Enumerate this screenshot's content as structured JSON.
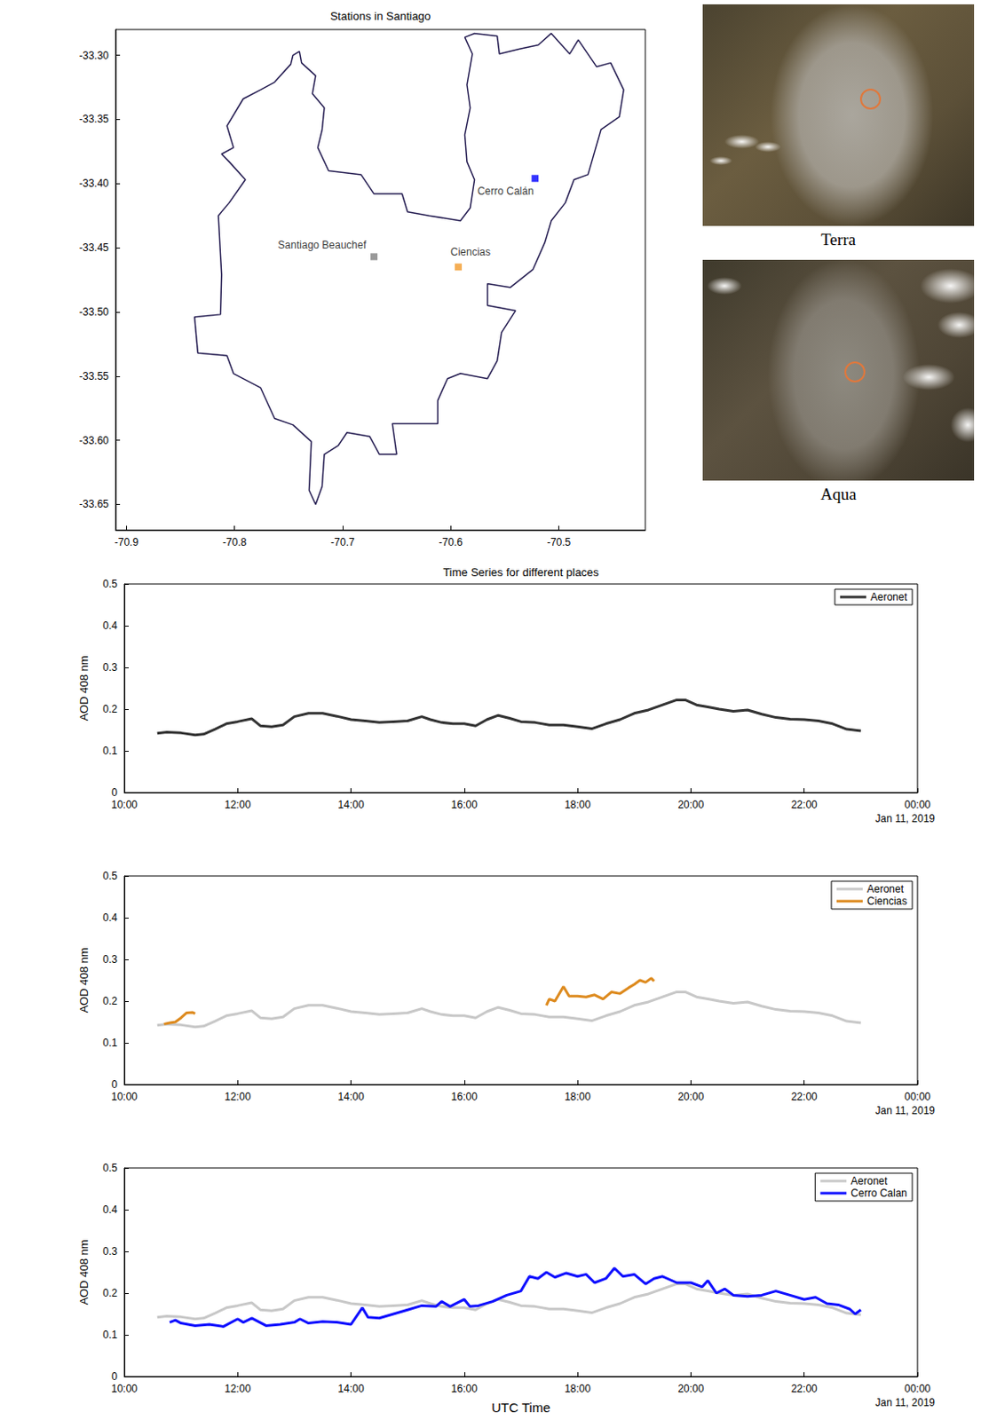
{
  "chart_data": [
    {
      "type": "map",
      "title": "Stations in Santiago",
      "xlim": [
        -70.91,
        -70.42
      ],
      "xticks": [
        -70.9,
        -70.8,
        -70.7,
        -70.6,
        -70.5
      ],
      "ylim": [
        -33.67,
        -33.28
      ],
      "yticks": [
        {
          "value": -33.3,
          "label": "-33.30"
        },
        -33.35,
        {
          "value": -33.4,
          "label": "-33.40"
        },
        -33.45,
        {
          "value": -33.5,
          "label": "-33.50"
        },
        -33.55,
        {
          "value": -33.6,
          "label": "-33.60"
        },
        -33.65
      ],
      "grid": false,
      "outline": {
        "color": "#231b50",
        "lon": [
          -70.746,
          -70.74,
          -70.738,
          -70.725,
          -70.728,
          -70.717,
          -70.719,
          -70.723,
          -70.713,
          -70.683,
          -70.671,
          -70.645,
          -70.64,
          -70.62,
          -70.591,
          -70.582,
          -70.578,
          -70.585,
          -70.587,
          -70.582,
          -70.585,
          -70.58,
          -70.587,
          -70.578,
          -70.557,
          -70.555,
          -70.536,
          -70.519,
          -70.507,
          -70.49,
          -70.482,
          -70.465,
          -70.452,
          -70.44,
          -70.444,
          -70.461,
          -70.473,
          -70.486,
          -70.494,
          -70.507,
          -70.513,
          -70.524,
          -70.545,
          -70.566,
          -70.566,
          -70.54,
          -70.553,
          -70.557,
          -70.566,
          -70.591,
          -70.603,
          -70.612,
          -70.612,
          -70.654,
          -70.65,
          -70.666,
          -70.675,
          -70.696,
          -70.704,
          -70.717,
          -70.719,
          -70.725,
          -70.731,
          -70.729,
          -70.746,
          -70.763,
          -70.776,
          -70.801,
          -70.807,
          -70.834,
          -70.837,
          -70.813,
          -70.812,
          -70.815,
          -70.805,
          -70.79,
          -70.805,
          -70.812,
          -70.801,
          -70.807,
          -70.792,
          -70.776,
          -70.763,
          -70.748
        ],
        "lat": [
          -33.3,
          -33.297,
          -33.306,
          -33.316,
          -33.33,
          -33.341,
          -33.358,
          -33.372,
          -33.39,
          -33.393,
          -33.408,
          -33.408,
          -33.422,
          -33.425,
          -33.429,
          -33.419,
          -33.397,
          -33.383,
          -33.362,
          -33.341,
          -33.323,
          -33.299,
          -33.286,
          -33.283,
          -33.285,
          -33.299,
          -33.295,
          -33.292,
          -33.283,
          -33.299,
          -33.288,
          -33.309,
          -33.306,
          -33.327,
          -33.348,
          -33.358,
          -33.393,
          -33.397,
          -33.415,
          -33.429,
          -33.446,
          -33.467,
          -33.481,
          -33.478,
          -33.495,
          -33.499,
          -33.516,
          -33.538,
          -33.552,
          -33.548,
          -33.552,
          -33.569,
          -33.587,
          -33.587,
          -33.611,
          -33.611,
          -33.597,
          -33.594,
          -33.604,
          -33.611,
          -33.636,
          -33.65,
          -33.639,
          -33.601,
          -33.588,
          -33.583,
          -33.559,
          -33.548,
          -33.534,
          -33.532,
          -33.504,
          -33.502,
          -33.471,
          -33.425,
          -33.415,
          -33.397,
          -33.383,
          -33.377,
          -33.372,
          -33.355,
          -33.334,
          -33.327,
          -33.321,
          -33.307
        ]
      },
      "stations": [
        {
          "name": "Santiago Beauchef",
          "lon": -70.671,
          "lat": -33.457,
          "color": "#808080"
        },
        {
          "name": "Ciencias",
          "lon": -70.593,
          "lat": -33.465,
          "color": "#f39a2a"
        },
        {
          "name": "Cerro Calán",
          "lon": -70.522,
          "lat": -33.396,
          "color": "#0000ff"
        }
      ],
      "marker": "square"
    },
    {
      "type": "line",
      "title": "Time Series for different places",
      "ylabel": "AOD 408 nm",
      "xlim": [
        10,
        24
      ],
      "xticks": [
        {
          "value": 10,
          "label": "10:00"
        },
        {
          "value": 12,
          "label": "12:00"
        },
        {
          "value": 14,
          "label": "14:00"
        },
        {
          "value": 16,
          "label": "16:00"
        },
        {
          "value": 18,
          "label": "18:00"
        },
        {
          "value": 20,
          "label": "20:00"
        },
        {
          "value": 22,
          "label": "22:00"
        },
        {
          "value": 24,
          "label": "00:00"
        }
      ],
      "ylim": [
        0,
        0.5
      ],
      "yticks": [
        0,
        0.1,
        0.2,
        0.3,
        0.4,
        0.5
      ],
      "grid": false,
      "legend": "upper right",
      "annotations": [
        {
          "text": "Jan 11, 2019",
          "x": 24
        }
      ],
      "series": [
        {
          "name": "Aeronet",
          "color": "#333333",
          "x": [
            10.58,
            10.75,
            11.0,
            11.25,
            11.4,
            11.6,
            11.8,
            12.0,
            12.25,
            12.4,
            12.6,
            12.8,
            13.0,
            13.25,
            13.5,
            13.75,
            14.0,
            14.25,
            14.5,
            14.75,
            15.0,
            15.25,
            15.4,
            15.6,
            15.8,
            16.0,
            16.2,
            16.4,
            16.6,
            16.8,
            17.0,
            17.25,
            17.5,
            17.75,
            18.0,
            18.25,
            18.5,
            18.75,
            19.0,
            19.25,
            19.5,
            19.75,
            19.9,
            20.1,
            20.3,
            20.5,
            20.75,
            21.0,
            21.25,
            21.5,
            21.75,
            22.0,
            22.25,
            22.5,
            22.75,
            23.0
          ],
          "values": [
            0.142,
            0.145,
            0.143,
            0.138,
            0.14,
            0.152,
            0.165,
            0.17,
            0.177,
            0.16,
            0.158,
            0.162,
            0.182,
            0.19,
            0.19,
            0.183,
            0.175,
            0.172,
            0.168,
            0.17,
            0.172,
            0.182,
            0.175,
            0.168,
            0.165,
            0.165,
            0.16,
            0.175,
            0.185,
            0.178,
            0.17,
            0.168,
            0.162,
            0.162,
            0.158,
            0.153,
            0.165,
            0.175,
            0.19,
            0.198,
            0.21,
            0.222,
            0.222,
            0.21,
            0.205,
            0.2,
            0.195,
            0.198,
            0.188,
            0.18,
            0.176,
            0.175,
            0.172,
            0.165,
            0.152,
            0.148
          ]
        }
      ]
    },
    {
      "type": "line",
      "ylabel": "AOD 408 nm",
      "xlim": [
        10,
        24
      ],
      "xticks": [
        {
          "value": 10,
          "label": "10:00"
        },
        {
          "value": 12,
          "label": "12:00"
        },
        {
          "value": 14,
          "label": "14:00"
        },
        {
          "value": 16,
          "label": "16:00"
        },
        {
          "value": 18,
          "label": "18:00"
        },
        {
          "value": 20,
          "label": "20:00"
        },
        {
          "value": 22,
          "label": "22:00"
        },
        {
          "value": 24,
          "label": "00:00"
        }
      ],
      "ylim": [
        0,
        0.5
      ],
      "yticks": [
        0,
        0.1,
        0.2,
        0.3,
        0.4,
        0.5
      ],
      "grid": false,
      "legend": "upper right",
      "annotations": [
        {
          "text": "Jan 11, 2019",
          "x": 24
        }
      ],
      "series": [
        {
          "name": "Aeronet",
          "color": "#c8c8c8",
          "x": [
            10.58,
            10.75,
            11.0,
            11.25,
            11.4,
            11.6,
            11.8,
            12.0,
            12.25,
            12.4,
            12.6,
            12.8,
            13.0,
            13.25,
            13.5,
            13.75,
            14.0,
            14.25,
            14.5,
            14.75,
            15.0,
            15.25,
            15.4,
            15.6,
            15.8,
            16.0,
            16.2,
            16.4,
            16.6,
            16.8,
            17.0,
            17.25,
            17.5,
            17.75,
            18.0,
            18.25,
            18.5,
            18.75,
            19.0,
            19.25,
            19.5,
            19.75,
            19.9,
            20.1,
            20.3,
            20.5,
            20.75,
            21.0,
            21.25,
            21.5,
            21.75,
            22.0,
            22.25,
            22.5,
            22.75,
            23.0
          ],
          "values": [
            0.142,
            0.145,
            0.143,
            0.138,
            0.14,
            0.152,
            0.165,
            0.17,
            0.177,
            0.16,
            0.158,
            0.162,
            0.182,
            0.19,
            0.19,
            0.183,
            0.175,
            0.172,
            0.168,
            0.17,
            0.172,
            0.182,
            0.175,
            0.168,
            0.165,
            0.165,
            0.16,
            0.175,
            0.185,
            0.178,
            0.17,
            0.168,
            0.162,
            0.162,
            0.158,
            0.153,
            0.165,
            0.175,
            0.19,
            0.198,
            0.21,
            0.222,
            0.222,
            0.21,
            0.205,
            0.2,
            0.195,
            0.198,
            0.188,
            0.18,
            0.176,
            0.175,
            0.172,
            0.165,
            0.152,
            0.148
          ]
        },
        {
          "name": "Ciencias",
          "color": "#dd8a1e",
          "x": [
            10.7,
            10.8,
            10.9,
            11.0,
            11.1,
            11.2,
            11.25,
            14.0,
            17.45,
            17.5,
            17.6,
            17.75,
            17.85,
            18.0,
            18.15,
            18.3,
            18.45,
            18.6,
            18.75,
            18.9,
            19.0,
            19.1,
            19.2,
            19.3,
            19.35
          ],
          "values": [
            0.145,
            0.148,
            0.15,
            0.16,
            0.172,
            0.173,
            0.17,
            null,
            0.19,
            0.205,
            0.2,
            0.235,
            0.212,
            0.212,
            0.21,
            0.215,
            0.205,
            0.222,
            0.218,
            0.232,
            0.24,
            0.25,
            0.245,
            0.255,
            0.248
          ]
        }
      ]
    },
    {
      "type": "line",
      "ylabel": "AOD 408 nm",
      "xlabel": "UTC Time",
      "xlim": [
        10,
        24
      ],
      "xticks": [
        {
          "value": 10,
          "label": "10:00"
        },
        {
          "value": 12,
          "label": "12:00"
        },
        {
          "value": 14,
          "label": "14:00"
        },
        {
          "value": 16,
          "label": "16:00"
        },
        {
          "value": 18,
          "label": "18:00"
        },
        {
          "value": 20,
          "label": "20:00"
        },
        {
          "value": 22,
          "label": "22:00"
        },
        {
          "value": 24,
          "label": "00:00"
        }
      ],
      "ylim": [
        0,
        0.5
      ],
      "yticks": [
        0,
        0.1,
        0.2,
        0.3,
        0.4,
        0.5
      ],
      "grid": false,
      "legend": "upper right",
      "annotations": [
        {
          "text": "Jan 11, 2019",
          "x": 24
        }
      ],
      "series": [
        {
          "name": "Aeronet",
          "color": "#c8c8c8",
          "x": [
            10.58,
            10.75,
            11.0,
            11.25,
            11.4,
            11.6,
            11.8,
            12.0,
            12.25,
            12.4,
            12.6,
            12.8,
            13.0,
            13.25,
            13.5,
            13.75,
            14.0,
            14.25,
            14.5,
            14.75,
            15.0,
            15.25,
            15.4,
            15.6,
            15.8,
            16.0,
            16.2,
            16.4,
            16.6,
            16.8,
            17.0,
            17.25,
            17.5,
            17.75,
            18.0,
            18.25,
            18.5,
            18.75,
            19.0,
            19.25,
            19.5,
            19.75,
            19.9,
            20.1,
            20.3,
            20.5,
            20.75,
            21.0,
            21.25,
            21.5,
            21.75,
            22.0,
            22.25,
            22.5,
            22.75,
            23.0
          ],
          "values": [
            0.142,
            0.145,
            0.143,
            0.138,
            0.14,
            0.152,
            0.165,
            0.17,
            0.177,
            0.16,
            0.158,
            0.162,
            0.182,
            0.19,
            0.19,
            0.183,
            0.175,
            0.172,
            0.168,
            0.17,
            0.172,
            0.182,
            0.175,
            0.168,
            0.165,
            0.165,
            0.16,
            0.175,
            0.185,
            0.178,
            0.17,
            0.168,
            0.162,
            0.162,
            0.158,
            0.153,
            0.165,
            0.175,
            0.19,
            0.198,
            0.21,
            0.222,
            0.222,
            0.21,
            0.205,
            0.2,
            0.195,
            0.198,
            0.188,
            0.18,
            0.176,
            0.175,
            0.172,
            0.165,
            0.152,
            0.148
          ]
        },
        {
          "name": "Cerro Calan",
          "color": "#1010ff",
          "x": [
            10.8,
            10.9,
            11.0,
            11.25,
            11.5,
            11.75,
            12.0,
            12.1,
            12.25,
            12.5,
            12.75,
            13.0,
            13.1,
            13.25,
            13.5,
            13.75,
            14.0,
            14.2,
            14.3,
            14.5,
            14.75,
            15.0,
            15.25,
            15.5,
            15.6,
            15.75,
            16.0,
            16.1,
            16.25,
            16.5,
            16.75,
            17.0,
            17.15,
            17.3,
            17.45,
            17.6,
            17.8,
            18.0,
            18.15,
            18.3,
            18.5,
            18.65,
            18.8,
            19.0,
            19.2,
            19.35,
            19.5,
            19.75,
            20.0,
            20.2,
            20.3,
            20.45,
            20.6,
            20.75,
            21.0,
            21.25,
            21.5,
            21.75,
            22.0,
            22.2,
            22.4,
            22.6,
            22.8,
            22.9,
            23.0
          ],
          "values": [
            0.13,
            0.135,
            0.128,
            0.122,
            0.125,
            0.12,
            0.138,
            0.13,
            0.14,
            0.122,
            0.125,
            0.13,
            0.138,
            0.128,
            0.132,
            0.13,
            0.125,
            0.165,
            0.142,
            0.14,
            0.15,
            0.16,
            0.17,
            0.168,
            0.18,
            0.168,
            0.185,
            0.168,
            0.17,
            0.18,
            0.195,
            0.205,
            0.24,
            0.235,
            0.25,
            0.238,
            0.248,
            0.24,
            0.245,
            0.225,
            0.235,
            0.26,
            0.24,
            0.245,
            0.222,
            0.235,
            0.24,
            0.225,
            0.225,
            0.215,
            0.23,
            0.2,
            0.21,
            0.195,
            0.192,
            0.195,
            0.205,
            0.195,
            0.185,
            0.19,
            0.175,
            0.172,
            0.162,
            0.15,
            0.16
          ]
        }
      ]
    }
  ],
  "images": [
    {
      "label": "Terra"
    },
    {
      "label": "Aqua"
    }
  ]
}
